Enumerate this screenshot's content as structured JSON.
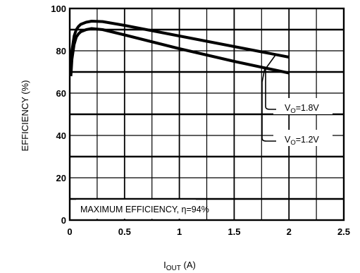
{
  "chart_data": {
    "type": "line",
    "title": "",
    "xlabel": {
      "main": "I",
      "sub": "OUT",
      "unit": " (A)"
    },
    "ylabel": "EFFICIENCY (%)",
    "xlim": [
      0,
      2.5
    ],
    "ylim": [
      0,
      100
    ],
    "x_ticks": [
      0,
      0.5,
      1,
      1.5,
      2,
      2.5
    ],
    "x_tick_labels": [
      "0",
      "0.5",
      "1",
      "1.5",
      "2",
      "2.5"
    ],
    "y_ticks": [
      0,
      20,
      40,
      60,
      80,
      100
    ],
    "y_tick_labels": [
      "0",
      "20",
      "40",
      "60",
      "80",
      "100"
    ],
    "grid": true,
    "series": [
      {
        "name": {
          "main": "V",
          "sub": "O",
          "rest": "=1.8V"
        },
        "x": [
          0.01,
          0.02,
          0.04,
          0.06,
          0.08,
          0.1,
          0.15,
          0.2,
          0.3,
          0.5,
          1.0,
          1.5,
          2.0
        ],
        "y": [
          72,
          80,
          87,
          90,
          91.5,
          92.5,
          93.5,
          94,
          93.8,
          92,
          87,
          82,
          77
        ]
      },
      {
        "name": {
          "main": "V",
          "sub": "O",
          "rest": "=1.2V"
        },
        "x": [
          0.01,
          0.02,
          0.04,
          0.06,
          0.08,
          0.1,
          0.15,
          0.2,
          0.3,
          0.5,
          1.0,
          1.5,
          2.0
        ],
        "y": [
          68,
          76,
          83,
          86.5,
          88,
          89,
          90,
          90.5,
          90,
          87.5,
          81,
          75,
          69.5
        ]
      }
    ],
    "annotation": {
      "pre": "MAXIMUM EFFICIENCY, ",
      "symbol": "η",
      "post": "=94%"
    },
    "colors": {
      "line": "#000000",
      "background": "#ffffff"
    }
  }
}
